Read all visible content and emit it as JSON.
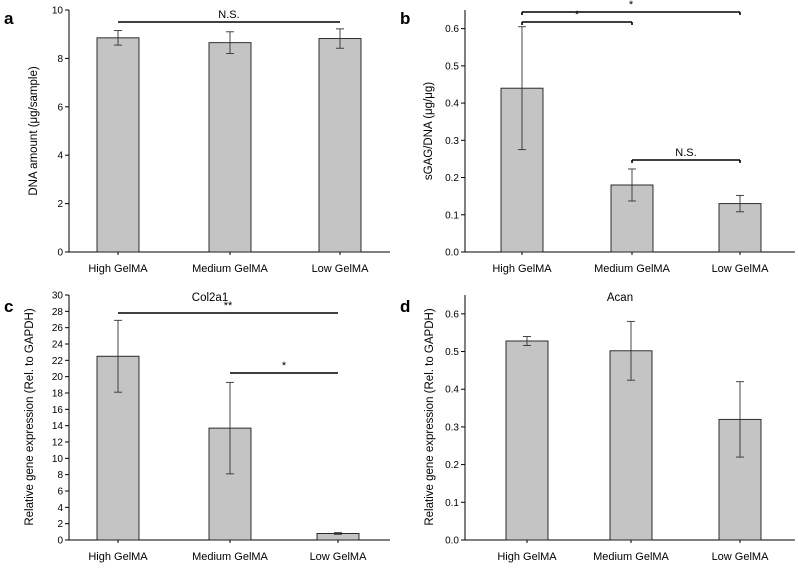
{
  "chart_data": [
    {
      "panel": "a",
      "type": "bar",
      "title": "",
      "categories": [
        "High GelMA",
        "Medium GelMA",
        "Low GelMA"
      ],
      "values": [
        8.85,
        8.65,
        8.82
      ],
      "errors": [
        0.3,
        0.45,
        0.4
      ],
      "ylabel": "DNA amount (μg/sample)",
      "xlabel": "",
      "ylim": [
        0,
        10
      ],
      "yticks": [
        "0",
        "2",
        "4",
        "6",
        "8",
        "10"
      ],
      "significance": [
        {
          "from": 0,
          "to": 2,
          "label": "N.S."
        }
      ]
    },
    {
      "panel": "b",
      "type": "bar",
      "title": "",
      "categories": [
        "High GelMA",
        "Medium GelMA",
        "Low GelMA"
      ],
      "values": [
        0.44,
        0.18,
        0.13
      ],
      "errors": [
        0.165,
        0.043,
        0.022
      ],
      "ylabel": "sGAG/DNA (μg/μg)",
      "xlabel": "",
      "ylim": [
        0,
        0.65
      ],
      "yticks": [
        "0.0",
        "0.1",
        "0.2",
        "0.3",
        "0.4",
        "0.5",
        "0.6"
      ],
      "significance": [
        {
          "from": 0,
          "to": 2,
          "label": "*"
        },
        {
          "from": 0,
          "to": 1,
          "label": "*"
        },
        {
          "from": 1,
          "to": 2,
          "label": "N.S."
        }
      ]
    },
    {
      "panel": "c",
      "type": "bar",
      "title": "Col2a1",
      "categories": [
        "High GelMA",
        "Medium GelMA",
        "Low GelMA"
      ],
      "values": [
        22.5,
        13.7,
        0.8
      ],
      "errors": [
        4.4,
        5.6,
        0.1
      ],
      "ylabel": "Relative gene expression (Rel. to GAPDH)",
      "xlabel": "",
      "ylim": [
        0,
        30
      ],
      "yticks": [
        "0",
        "2",
        "4",
        "6",
        "8",
        "10",
        "12",
        "14",
        "16",
        "18",
        "20",
        "22",
        "24",
        "26",
        "28",
        "30"
      ],
      "significance": [
        {
          "from": 0,
          "to": 2,
          "label": "**"
        },
        {
          "from": 1,
          "to": 2,
          "label": "*"
        }
      ]
    },
    {
      "panel": "d",
      "type": "bar",
      "title": "Acan",
      "categories": [
        "High GelMA",
        "Medium GelMA",
        "Low GelMA"
      ],
      "values": [
        0.528,
        0.502,
        0.32
      ],
      "errors": [
        0.012,
        0.078,
        0.1
      ],
      "ylabel": "Relative gene expression (Rel. to GAPDH)",
      "xlabel": "",
      "ylim": [
        0,
        0.65
      ],
      "yticks": [
        "0.0",
        "0.1",
        "0.2",
        "0.3",
        "0.4",
        "0.5",
        "0.6"
      ],
      "significance": []
    }
  ]
}
